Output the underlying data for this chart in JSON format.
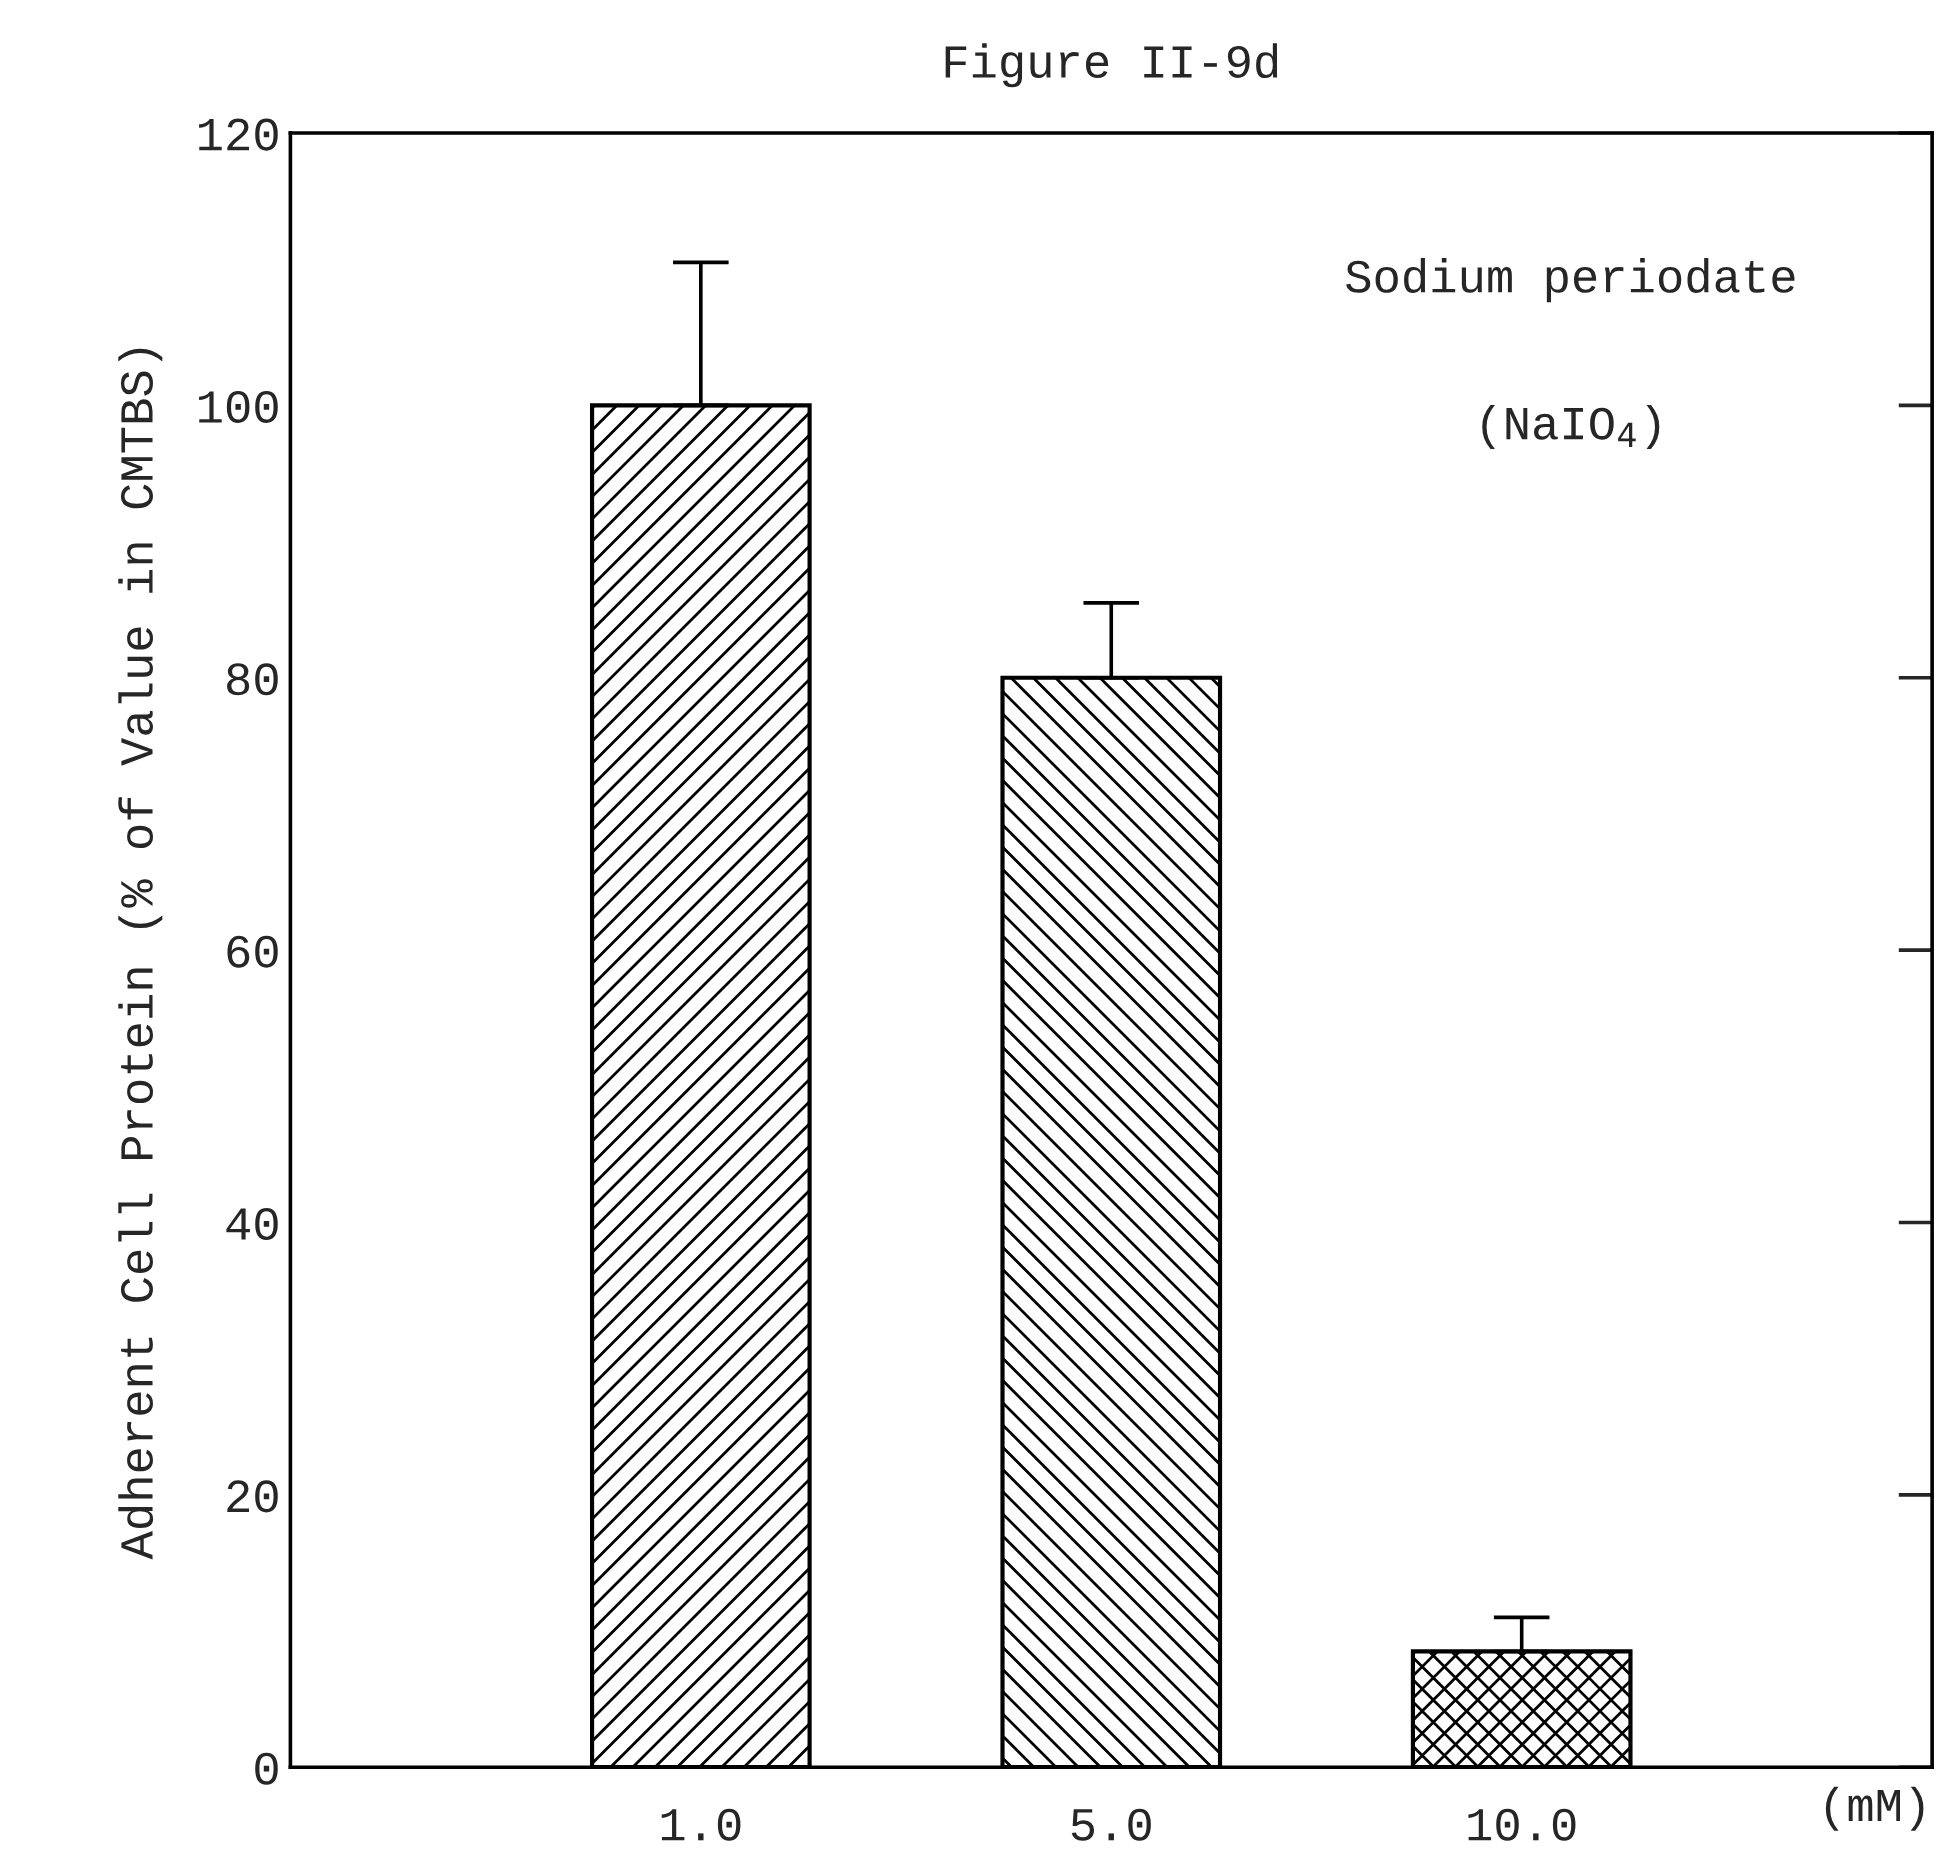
{
  "chart_data": {
    "type": "bar",
    "title": "Figure II-9d",
    "xlabel": "(mM)",
    "ylabel": "Adherent Cell Protein (% of Value in CMTBS)",
    "categories": [
      "1.0",
      "5.0",
      "10.0"
    ],
    "values": [
      100,
      80,
      8.5
    ],
    "errors": [
      [
        100,
        110.5
      ],
      [
        80,
        85.5
      ],
      [
        8.5,
        11
      ]
    ],
    "color": "#000000",
    "ylim": [
      0,
      120
    ],
    "yticks": [
      0,
      20,
      40,
      60,
      80,
      100,
      120
    ],
    "annotations": [
      "Sodium periodate",
      "(NaIO$_{4}$)"
    ],
    "grid": false
  }
}
